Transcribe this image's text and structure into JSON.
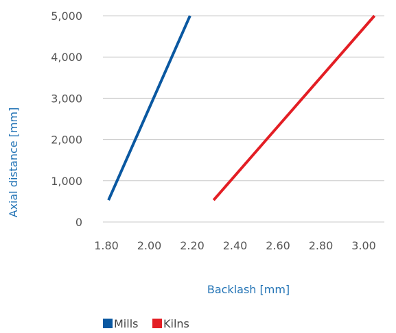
{
  "chart_data": {
    "type": "line",
    "xlabel": "Backlash [mm]",
    "ylabel": "Axial distance [mm]",
    "xlim": [
      1.8,
      3.2
    ],
    "ylim": [
      0,
      5000
    ],
    "x_ticks": [
      "1.80",
      "2.00",
      "2.20",
      "2.40",
      "2.60",
      "2.80",
      "3.00"
    ],
    "y_ticks": [
      "0",
      "1,000",
      "2,000",
      "3,000",
      "4,000",
      "5,000"
    ],
    "grid": "horizontal",
    "legend_position": "bottom-left",
    "series": [
      {
        "name": "Mills",
        "color": "#0a58a1",
        "points": [
          [
            1.81,
            530
          ],
          [
            2.19,
            5000
          ]
        ]
      },
      {
        "name": "Kilns",
        "color": "#e31e24",
        "points": [
          [
            2.3,
            530
          ],
          [
            3.05,
            5000
          ]
        ]
      }
    ]
  }
}
